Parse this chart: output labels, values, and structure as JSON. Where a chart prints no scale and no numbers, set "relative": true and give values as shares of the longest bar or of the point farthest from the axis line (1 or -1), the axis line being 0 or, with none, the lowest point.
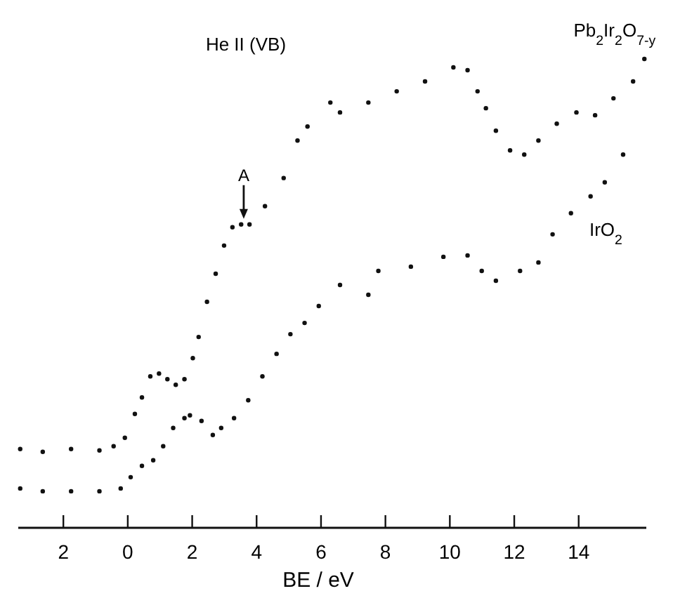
{
  "chart_data": {
    "type": "scatter",
    "title": "He II (VB)",
    "xlabel": "BE / eV",
    "relative": true,
    "marker": "circle",
    "xlim": [
      -3.4,
      16.1
    ],
    "xticks": [
      {
        "value": -2,
        "label": "2"
      },
      0,
      2,
      4,
      6,
      8,
      10,
      12,
      14
    ],
    "annotations": [
      {
        "text": "A",
        "x": 3.6,
        "y": 0.65
      }
    ],
    "series": [
      {
        "name": "Pb$_{2}$Ir$_{2}$O$_{7-y}$",
        "color": "#111111",
        "x": [
          -3.34,
          -2.64,
          -1.76,
          -0.88,
          -0.44,
          -0.09,
          0.22,
          0.44,
          0.7,
          0.97,
          1.23,
          1.49,
          1.76,
          2.02,
          2.2,
          2.46,
          2.73,
          2.99,
          3.25,
          3.52,
          3.78,
          4.26,
          4.84,
          5.27,
          5.58,
          6.29,
          6.59,
          7.47,
          8.35,
          9.23,
          10.11,
          10.55,
          10.86,
          11.12,
          11.43,
          11.87,
          12.31,
          12.75,
          13.32,
          13.93,
          14.51,
          15.08,
          15.69,
          16.04
        ],
        "values": [
          0.168,
          0.162,
          0.168,
          0.165,
          0.174,
          0.192,
          0.243,
          0.278,
          0.323,
          0.329,
          0.317,
          0.305,
          0.317,
          0.362,
          0.407,
          0.482,
          0.542,
          0.602,
          0.641,
          0.647,
          0.647,
          0.686,
          0.746,
          0.826,
          0.856,
          0.907,
          0.886,
          0.907,
          0.931,
          0.952,
          0.982,
          0.976,
          0.931,
          0.895,
          0.847,
          0.805,
          0.796,
          0.826,
          0.862,
          0.886,
          0.88,
          0.916,
          0.952,
          1
        ]
      },
      {
        "name": "IrO$_{2}$",
        "color": "#111111",
        "x": [
          -3.34,
          -2.64,
          -1.76,
          -0.88,
          -0.22,
          0.09,
          0.44,
          0.79,
          1.1,
          1.41,
          1.76,
          1.93,
          2.29,
          2.64,
          2.9,
          3.3,
          3.74,
          4.18,
          4.62,
          5.05,
          5.49,
          5.93,
          6.59,
          7.47,
          7.78,
          8.79,
          9.8,
          10.55,
          10.99,
          11.43,
          12.18,
          12.75,
          13.19,
          13.76,
          14.37,
          14.81,
          15.38
        ],
        "values": [
          0.084,
          0.078,
          0.078,
          0.078,
          0.084,
          0.108,
          0.132,
          0.144,
          0.174,
          0.213,
          0.234,
          0.24,
          0.228,
          0.198,
          0.213,
          0.234,
          0.272,
          0.323,
          0.371,
          0.413,
          0.437,
          0.473,
          0.518,
          0.497,
          0.548,
          0.557,
          0.578,
          0.581,
          0.548,
          0.527,
          0.548,
          0.566,
          0.626,
          0.671,
          0.707,
          0.737,
          0.796
        ]
      }
    ]
  }
}
